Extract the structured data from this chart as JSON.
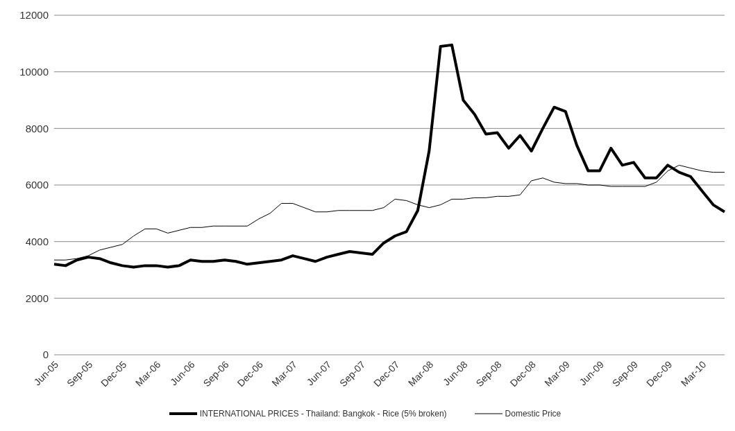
{
  "chart_data": {
    "type": "line",
    "categories": [
      "Jun-05",
      null,
      null,
      "Sep-05",
      null,
      null,
      "Dec-05",
      null,
      null,
      "Mar-06",
      null,
      null,
      "Jun-06",
      null,
      null,
      "Sep-06",
      null,
      null,
      "Dec-06",
      null,
      null,
      "Mar-07",
      null,
      null,
      "Jun-07",
      null,
      null,
      "Sep-07",
      null,
      null,
      "Dec-07",
      null,
      null,
      "Mar-08",
      null,
      null,
      "Jun-08",
      null,
      null,
      "Sep-08",
      null,
      null,
      "Dec-08",
      null,
      null,
      "Mar-09",
      null,
      null,
      "Jun-09",
      null,
      null,
      "Sep-09",
      null,
      null,
      "Dec-09",
      null,
      null,
      "Mar-10",
      null,
      null
    ],
    "series": [
      {
        "name": "INTERNATIONAL PRICES - Thailand: Bangkok - Rice (5% broken)",
        "color": "#000000",
        "values": [
          3200,
          3150,
          3350,
          3450,
          3400,
          3250,
          3150,
          3100,
          3150,
          3150,
          3100,
          3150,
          3350,
          3300,
          3300,
          3350,
          3300,
          3200,
          3250,
          3300,
          3350,
          3500,
          3400,
          3300,
          3450,
          3550,
          3650,
          3600,
          3550,
          3950,
          4200,
          4350,
          5100,
          7200,
          10900,
          10950,
          9000,
          8500,
          7800,
          7850,
          7300,
          7750,
          7200,
          8000,
          8750,
          8600,
          7400,
          6500,
          6500,
          7300,
          6700,
          6800,
          6250,
          6250,
          6700,
          6450,
          6300,
          5800,
          5300,
          5050
        ]
      },
      {
        "name": "Domestic Price",
        "color": "#000000",
        "values": [
          3350,
          3350,
          3400,
          3500,
          3700,
          3800,
          3900,
          4200,
          4450,
          4450,
          4300,
          4400,
          4500,
          4500,
          4550,
          4550,
          4550,
          4550,
          4800,
          5000,
          5350,
          5350,
          5200,
          5050,
          5050,
          5100,
          5100,
          5100,
          5100,
          5200,
          5500,
          5450,
          5300,
          5200,
          5300,
          5500,
          5500,
          5550,
          5550,
          5600,
          5600,
          5650,
          6150,
          6250,
          6100,
          6050,
          6050,
          6000,
          6000,
          5950,
          5950,
          5950,
          5950,
          6100,
          6500,
          6700,
          6600,
          6500,
          6450,
          6450
        ]
      }
    ],
    "ylim": [
      0,
      12000
    ],
    "yticks": [
      0,
      2000,
      4000,
      6000,
      8000,
      10000,
      12000
    ],
    "grid": "y",
    "legend": "bottom",
    "marker": "none"
  }
}
